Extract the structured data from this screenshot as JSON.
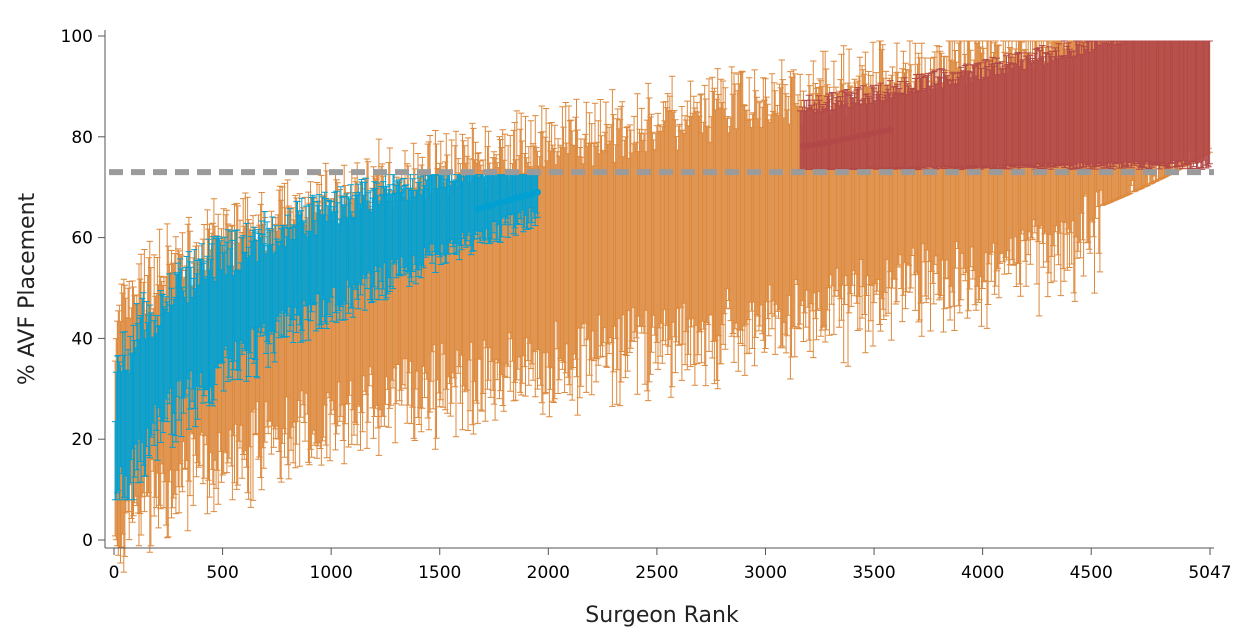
{
  "chart_data": {
    "type": "scatter",
    "title": "",
    "xlabel": "Surgeon Rank",
    "ylabel": "% AVF Placement",
    "xlim": [
      0,
      5047
    ],
    "ylim": [
      0,
      100
    ],
    "x_ticks": [
      0,
      500,
      1000,
      1500,
      2000,
      2500,
      3000,
      3500,
      4000,
      4500,
      5047
    ],
    "x_tick_labels": [
      "0",
      "500",
      "1000",
      "1500",
      "2000",
      "2500",
      "3000",
      "3500",
      "4000",
      "4500",
      "5047"
    ],
    "y_ticks": [
      0,
      20,
      40,
      60,
      80,
      100
    ],
    "y_tick_labels": [
      "0",
      "20",
      "40",
      "60",
      "80",
      "100"
    ],
    "reference_line": {
      "y": 73,
      "style": "dashed",
      "color": "#9b9b9b"
    },
    "grid": false,
    "legend": "none",
    "n_surgeons": 5047,
    "error_bars": true,
    "series": [
      {
        "color": "#00a0d2",
        "rank_range": [
          1,
          1950
        ],
        "estimate_range": [
          12,
          69
        ],
        "interval_low_range": [
          8,
          63
        ],
        "interval_high_range": [
          18,
          73
        ]
      },
      {
        "color": "#dd8a3e",
        "rank_range": [
          1,
          5047
        ],
        "estimate_range": [
          18,
          97
        ],
        "interval_low_range": [
          22,
          73
        ],
        "interval_high_range": [
          55,
          98
        ]
      },
      {
        "color": "#b34848",
        "rank_range": [
          3160,
          5047
        ],
        "estimate_range": [
          78,
          98
        ],
        "interval_low_range": [
          67,
          74
        ],
        "interval_high_range": [
          84,
          99
        ]
      }
    ]
  }
}
